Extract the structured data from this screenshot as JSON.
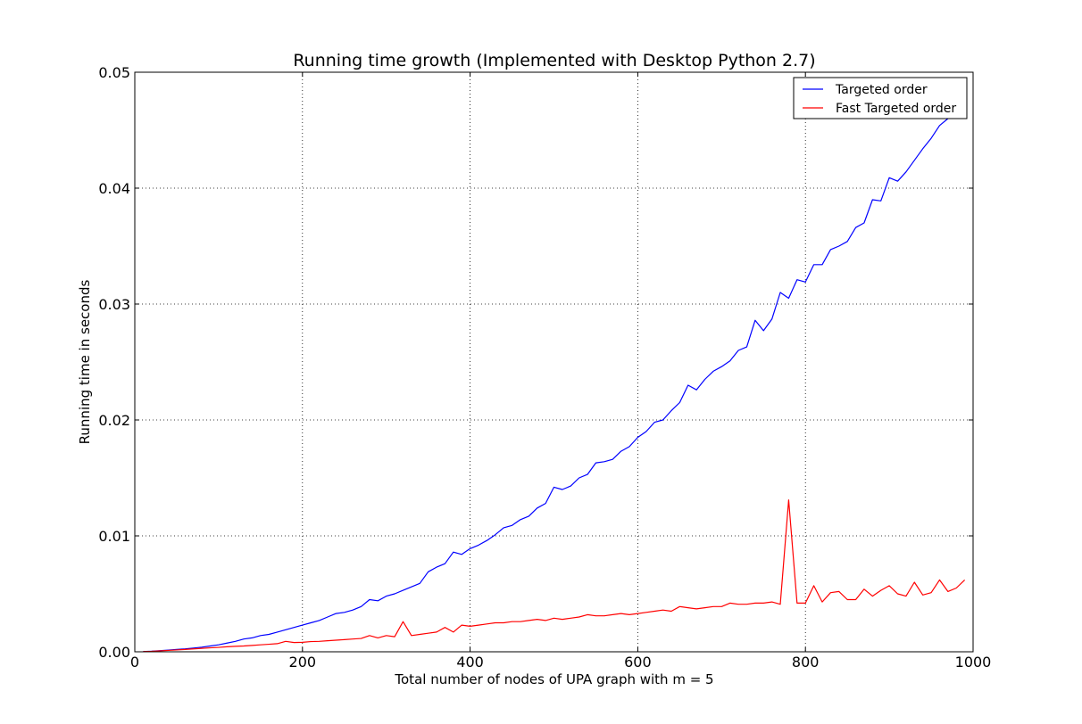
{
  "chart_data": {
    "type": "line",
    "title": "Running time growth (Implemented with Desktop Python 2.7)",
    "xlabel": "Total number of nodes of UPA graph with m = 5",
    "ylabel": "Running time in seconds",
    "xlim": [
      0,
      1000
    ],
    "ylim": [
      0,
      0.05
    ],
    "xticks": [
      0,
      200,
      400,
      600,
      800,
      1000
    ],
    "xtick_labels": [
      "0",
      "200",
      "400",
      "600",
      "800",
      "1000"
    ],
    "yticks": [
      0,
      0.01,
      0.02,
      0.03,
      0.04,
      0.05
    ],
    "ytick_labels": [
      "0.00",
      "0.01",
      "0.02",
      "0.03",
      "0.04",
      "0.05"
    ],
    "grid": true,
    "legend_position": "top-right",
    "x": [
      10,
      20,
      30,
      40,
      50,
      60,
      70,
      80,
      90,
      100,
      110,
      120,
      130,
      140,
      150,
      160,
      170,
      180,
      190,
      200,
      210,
      220,
      230,
      240,
      250,
      260,
      270,
      280,
      290,
      300,
      310,
      320,
      330,
      340,
      350,
      360,
      370,
      380,
      390,
      400,
      410,
      420,
      430,
      440,
      450,
      460,
      470,
      480,
      490,
      500,
      510,
      520,
      530,
      540,
      550,
      560,
      570,
      580,
      590,
      600,
      610,
      620,
      630,
      640,
      650,
      660,
      670,
      680,
      690,
      700,
      710,
      720,
      730,
      740,
      750,
      760,
      770,
      780,
      790,
      800,
      810,
      820,
      830,
      840,
      850,
      860,
      870,
      880,
      890,
      900,
      910,
      920,
      930,
      940,
      950,
      960,
      970,
      980,
      990
    ],
    "series": [
      {
        "name": "Targeted order",
        "color": "#0000ff",
        "values": [
          2e-05,
          5e-05,
          0.0001,
          0.00015,
          0.0002,
          0.00025,
          0.00032,
          0.0004,
          0.0005,
          0.0006,
          0.00075,
          0.0009,
          0.0011,
          0.0012,
          0.0014,
          0.0015,
          0.0017,
          0.0019,
          0.0021,
          0.0023,
          0.0025,
          0.0027,
          0.003,
          0.0033,
          0.0034,
          0.0036,
          0.0039,
          0.0045,
          0.0044,
          0.0048,
          0.005,
          0.0053,
          0.0056,
          0.0059,
          0.0069,
          0.0073,
          0.0076,
          0.0086,
          0.0084,
          0.0089,
          0.0092,
          0.0096,
          0.0101,
          0.0107,
          0.0109,
          0.0114,
          0.0117,
          0.0124,
          0.0128,
          0.0142,
          0.014,
          0.0143,
          0.015,
          0.0153,
          0.0163,
          0.0164,
          0.0166,
          0.0173,
          0.0177,
          0.0185,
          0.019,
          0.0198,
          0.02,
          0.0208,
          0.0215,
          0.023,
          0.0226,
          0.0235,
          0.0242,
          0.0246,
          0.0251,
          0.026,
          0.0263,
          0.0286,
          0.0277,
          0.0287,
          0.031,
          0.0305,
          0.0321,
          0.0319,
          0.0334,
          0.0334,
          0.0347,
          0.035,
          0.0354,
          0.0366,
          0.037,
          0.039,
          0.0389,
          0.0409,
          0.0406,
          0.0414,
          0.0424,
          0.0434,
          0.0443,
          0.0454,
          0.046,
          0.0465,
          0.0472
        ]
      },
      {
        "name": "Fast Targeted order",
        "color": "#ff0000",
        "values": [
          2e-05,
          4e-05,
          8e-05,
          0.00012,
          0.00016,
          0.0002,
          0.00025,
          0.0003,
          0.00034,
          0.00038,
          0.00043,
          0.00047,
          0.0005,
          0.00055,
          0.0006,
          0.00065,
          0.0007,
          0.0009,
          0.0008,
          0.00082,
          0.00088,
          0.0009,
          0.00095,
          0.001,
          0.00105,
          0.0011,
          0.00115,
          0.0014,
          0.0012,
          0.0014,
          0.0013,
          0.0026,
          0.0014,
          0.0015,
          0.0016,
          0.0017,
          0.0021,
          0.0017,
          0.0023,
          0.0022,
          0.0023,
          0.0024,
          0.0025,
          0.0025,
          0.0026,
          0.0026,
          0.0027,
          0.0028,
          0.0027,
          0.0029,
          0.0028,
          0.0029,
          0.003,
          0.0032,
          0.0031,
          0.0031,
          0.0032,
          0.0033,
          0.0032,
          0.0033,
          0.0034,
          0.0035,
          0.0036,
          0.0035,
          0.0039,
          0.0038,
          0.0037,
          0.0038,
          0.0039,
          0.0039,
          0.0042,
          0.0041,
          0.0041,
          0.0042,
          0.0042,
          0.0043,
          0.0041,
          0.0131,
          0.0042,
          0.0042,
          0.0057,
          0.0043,
          0.0051,
          0.0052,
          0.0045,
          0.0045,
          0.0054,
          0.0048,
          0.0053,
          0.0057,
          0.005,
          0.0048,
          0.006,
          0.0049,
          0.0051,
          0.0062,
          0.0052,
          0.0055,
          0.0062
        ]
      }
    ]
  }
}
